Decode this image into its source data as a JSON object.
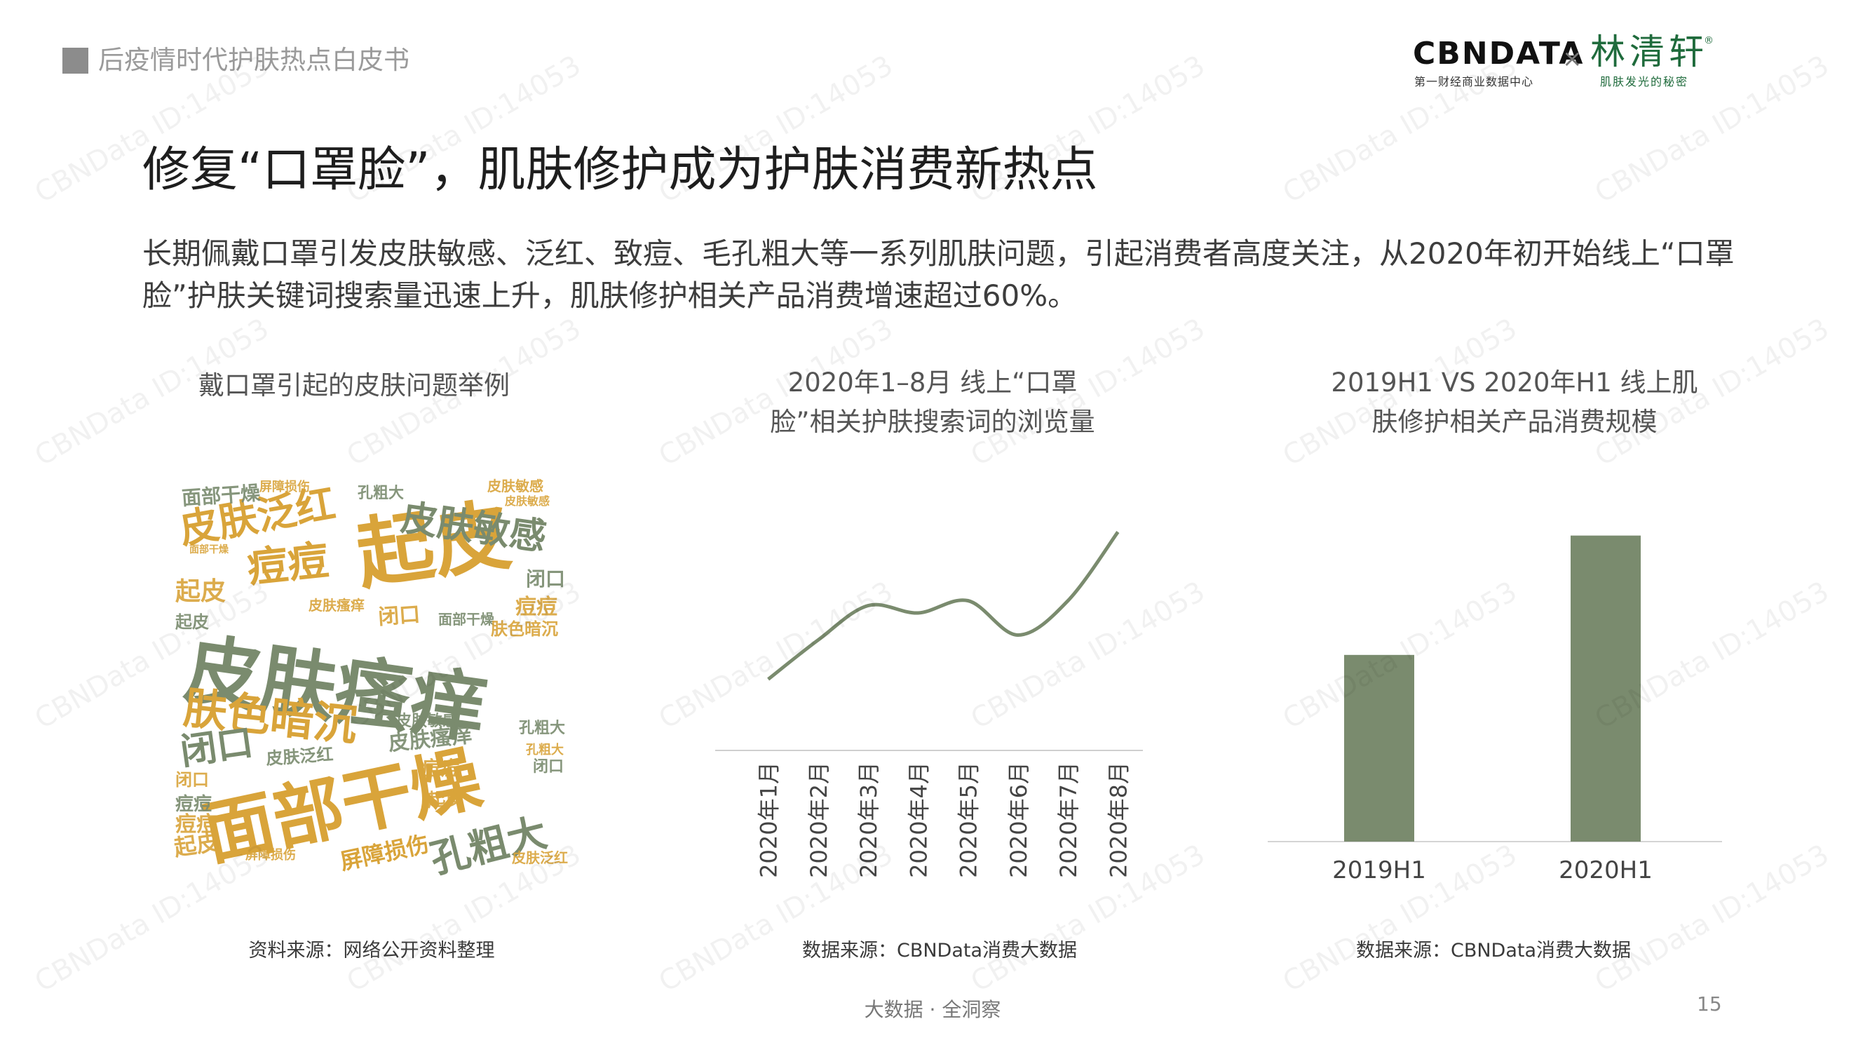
{
  "header": {
    "report_title": "后疫情时代护肤热点白皮书",
    "logo_cbndata": "CBNDATA",
    "logo_cbndata_sub": "第一财经商业数据中心",
    "logo_x": "×",
    "logo_linqingxuan": "林清轩",
    "logo_reg": "®",
    "logo_linqingxuan_sub": "肌肤发光的秘密"
  },
  "slide": {
    "title": "修复“口罩脸”，肌肤修护成为护肤消费新热点",
    "description": "长期佩戴口罩引发皮肤敏感、泛红、致痘、毛孔粗大等一系列肌肤问题，引起消费者高度关注，从2020年初开始线上“口罩脸”护肤关键词搜索量迅速上升，肌肤修护相关产品消费增速超过60%。"
  },
  "panels": {
    "p1_title": "戴口罩引起的皮肤问题举例",
    "p1_source": "资料来源：网络公开资料整理",
    "p2_title_line1": "2020年1–8月 线上“口罩",
    "p2_title_line2": "脸”相关护肤搜索词的浏览量",
    "p2_source": "数据来源：CBNData消费大数据",
    "p3_title_line1": "2019H1 VS 2020年H1 线上肌",
    "p3_title_line2": "肤修护相关产品消费规模",
    "p3_source": "数据来源：CBNData消费大数据"
  },
  "footer": {
    "tagline": "大数据 · 全洞察",
    "page_number": "15"
  },
  "watermark_text": "CBNData ID:14053",
  "colors": {
    "green": "#7a8b6e",
    "gold": "#d9a43a",
    "accent_dark_green": "#1f6b3c"
  },
  "wordcloud": {
    "words": [
      {
        "text": "皮肤瘙痒",
        "weight": 10,
        "color": "green"
      },
      {
        "text": "面部干燥",
        "weight": 9,
        "color": "gold"
      },
      {
        "text": "起皮",
        "weight": 8,
        "color": "gold"
      },
      {
        "text": "皮肤泛红",
        "weight": 6,
        "color": "gold"
      },
      {
        "text": "皮肤敏感",
        "weight": 6,
        "color": "green"
      },
      {
        "text": "肤色暗沉",
        "weight": 6,
        "color": "gold"
      },
      {
        "text": "痘痘",
        "weight": 5,
        "color": "gold"
      },
      {
        "text": "孔粗大",
        "weight": 5,
        "color": "green"
      },
      {
        "text": "闭口",
        "weight": 5,
        "color": "green"
      },
      {
        "text": "屏障损伤",
        "weight": 3,
        "color": "gold"
      }
    ]
  },
  "chart_data": [
    {
      "type": "line",
      "title": "2020年1–8月 线上“口罩脸”相关护肤搜索词的浏览量",
      "categories": [
        "2020年1月",
        "2020年2月",
        "2020年3月",
        "2020年4月",
        "2020年5月",
        "2020年6月",
        "2020年7月",
        "2020年8月"
      ],
      "series": [
        {
          "values": [
            29,
            45,
            59,
            56,
            61,
            47,
            61,
            89
          ]
        }
      ],
      "ylim": [
        0,
        100
      ],
      "grid": false,
      "y_axis_visible": false
    },
    {
      "type": "bar",
      "title": "2019H1 VS 2020年H1 线上肌肤修护相关产品消费规模",
      "categories": [
        "2019H1",
        "2020H1"
      ],
      "values": [
        61,
        100
      ],
      "ylim": [
        0,
        110
      ],
      "grid": false,
      "y_axis_visible": false
    }
  ]
}
